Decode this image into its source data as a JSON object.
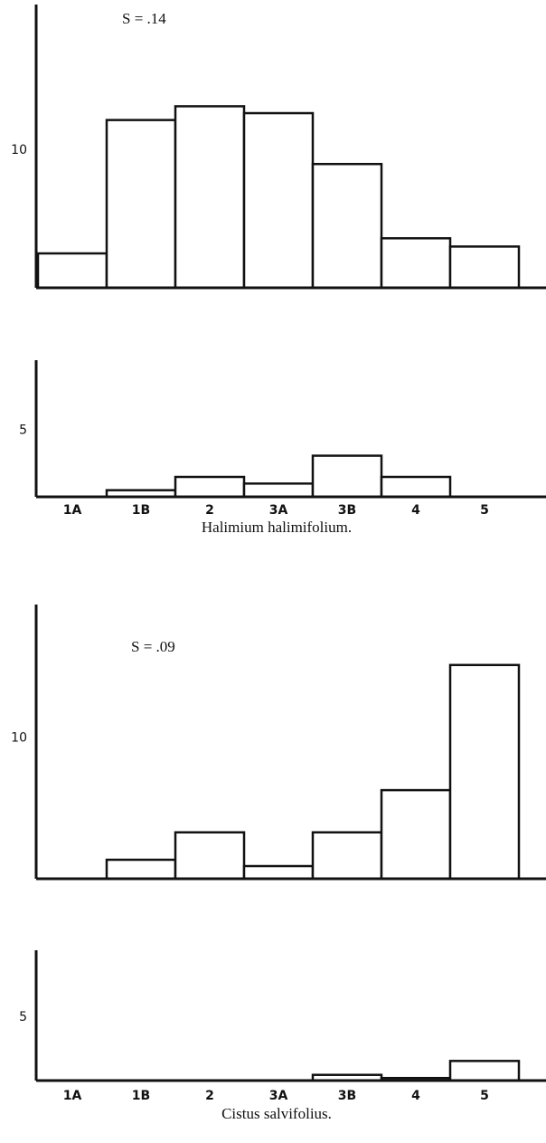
{
  "chart_data": [
    {
      "type": "bar",
      "annotation": "S = .14",
      "values": [
        2.5,
        12.2,
        13.2,
        12.7,
        9.0,
        3.6,
        3.0
      ],
      "color": "#ffffff",
      "ylim": [
        0,
        20.6
      ],
      "yticks": [
        10
      ],
      "grid": false
    },
    {
      "type": "bar",
      "categories": [
        "1A",
        "1B",
        "2",
        "3A",
        "3B",
        "4",
        "5"
      ],
      "xlabel": "Halimium halimifolium.",
      "values": [
        0,
        0.5,
        1.5,
        1.0,
        3.1,
        1.5,
        0
      ],
      "color": "#ffffff",
      "ylim": [
        0,
        10.3
      ],
      "yticks": [
        5
      ],
      "grid": false
    },
    {
      "type": "bar",
      "annotation": "S = .09",
      "values": [
        0,
        1.35,
        3.3,
        0.9,
        3.3,
        6.3,
        15.2
      ],
      "color": "#ffffff",
      "ylim": [
        0,
        19.5
      ],
      "yticks": [
        10
      ],
      "grid": false
    },
    {
      "type": "bar",
      "categories": [
        "1A",
        "1B",
        "2",
        "3A",
        "3B",
        "4",
        "5"
      ],
      "xlabel": "Cistus salvifolius.",
      "values": [
        0,
        0,
        0,
        0,
        0.45,
        0.2,
        1.55
      ],
      "color": "#ffffff",
      "ylim": [
        0,
        10.3
      ],
      "yticks": [
        5
      ],
      "grid": false
    }
  ]
}
